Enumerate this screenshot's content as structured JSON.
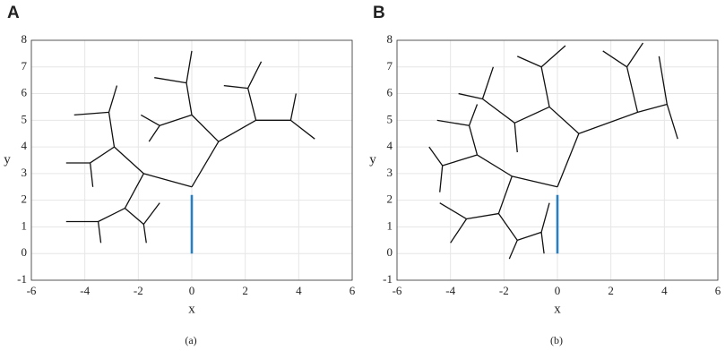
{
  "chart_data": [
    {
      "type": "line",
      "panel": "A",
      "caption": "(a)",
      "xlabel": "x",
      "ylabel": "y",
      "xlim": [
        -6,
        6
      ],
      "ylim": [
        -1,
        8
      ],
      "xticks": [
        -6,
        -4,
        -2,
        0,
        2,
        4,
        6
      ],
      "yticks": [
        -1,
        0,
        1,
        2,
        3,
        4,
        5,
        6,
        7,
        8
      ],
      "grid": true,
      "series": [
        {
          "color": "#111111",
          "x": [
            0,
            1.0,
            null,
            0,
            -1.8,
            null,
            1.0,
            0,
            null,
            1.0,
            2.4,
            null,
            2.4,
            3.7,
            null,
            2.4,
            2.1,
            null,
            3.7,
            3.9,
            null,
            3.7,
            4.6,
            null,
            2.1,
            1.2,
            null,
            2.1,
            2.6,
            null,
            0,
            -0.2,
            null,
            0,
            -1.2,
            null,
            -0.2,
            0,
            null,
            -0.2,
            -1.4,
            null,
            -1.2,
            -1.9,
            null,
            -1.2,
            -1.6,
            null,
            -1.8,
            -2.9,
            null,
            -1.8,
            -2.5,
            null,
            -2.9,
            -3.1,
            null,
            -2.9,
            -3.8,
            null,
            -3.1,
            -4.4,
            null,
            -3.1,
            -2.8,
            null,
            -3.8,
            -4.7,
            null,
            -3.8,
            -3.7,
            null,
            -2.5,
            -3.5,
            null,
            -2.5,
            -1.8,
            null,
            -1.8,
            -1.7,
            null,
            -1.8,
            -1.2,
            null,
            -3.5,
            -3.4,
            null,
            -3.5,
            -4.7
          ],
          "y": [
            2.5,
            4.2,
            null,
            2.5,
            3.0,
            null,
            4.2,
            5.2,
            null,
            4.2,
            5.0,
            null,
            5.0,
            5.0,
            null,
            5.0,
            6.2,
            null,
            5.0,
            6.0,
            null,
            5.0,
            4.3,
            null,
            6.2,
            6.3,
            null,
            6.2,
            7.2,
            null,
            5.2,
            6.4,
            null,
            5.2,
            4.8,
            null,
            6.4,
            7.6,
            null,
            6.4,
            6.6,
            null,
            4.8,
            5.2,
            null,
            4.8,
            4.2,
            null,
            3.0,
            4.0,
            null,
            3.0,
            1.7,
            null,
            4.0,
            5.3,
            null,
            4.0,
            3.4,
            null,
            5.3,
            5.2,
            null,
            5.3,
            6.3,
            null,
            3.4,
            3.4,
            null,
            3.4,
            2.5,
            null,
            1.7,
            1.2,
            null,
            1.7,
            1.1,
            null,
            1.1,
            0.4,
            null,
            1.1,
            1.9,
            null,
            1.2,
            0.4,
            null,
            1.2,
            1.2
          ]
        },
        {
          "color": "#2a7fc1",
          "x": [
            0,
            0
          ],
          "y": [
            0,
            2.2
          ]
        }
      ]
    },
    {
      "type": "line",
      "panel": "B",
      "caption": "(b)",
      "xlabel": "x",
      "ylabel": "y",
      "xlim": [
        -6,
        6
      ],
      "ylim": [
        -1,
        8
      ],
      "xticks": [
        -6,
        -4,
        -2,
        0,
        2,
        4,
        6
      ],
      "yticks": [
        -1,
        0,
        1,
        2,
        3,
        4,
        5,
        6,
        7,
        8
      ],
      "grid": true,
      "series": [
        {
          "color": "#111111",
          "x": [
            0,
            0.8,
            null,
            0,
            -1.7,
            null,
            0.8,
            3.0,
            null,
            0.8,
            -0.3,
            null,
            3.0,
            4.1,
            null,
            3.0,
            2.6,
            null,
            4.1,
            4.5,
            null,
            4.1,
            3.8,
            null,
            2.6,
            1.7,
            null,
            2.6,
            3.2,
            null,
            -0.3,
            -0.6,
            null,
            -0.3,
            -1.6,
            null,
            -0.6,
            0.3,
            null,
            -0.6,
            -1.5,
            null,
            -1.6,
            -2.8,
            null,
            -1.6,
            -1.5,
            null,
            -2.8,
            -2.4,
            null,
            -2.8,
            -3.7,
            null,
            -1.7,
            -3.0,
            null,
            -1.7,
            -2.2,
            null,
            -3.0,
            -3.3,
            null,
            -3.0,
            -4.3,
            null,
            -3.3,
            -4.5,
            null,
            -3.3,
            -3.0,
            null,
            -4.3,
            -4.8,
            null,
            -4.3,
            -4.4,
            null,
            -2.2,
            -3.4,
            null,
            -2.2,
            -1.5,
            null,
            -3.4,
            -4.0,
            null,
            -3.4,
            -4.4,
            null,
            -1.5,
            -1.8,
            null,
            -1.5,
            -0.6,
            null,
            -0.6,
            -0.3,
            null,
            -0.6,
            -0.5
          ],
          "y": [
            2.5,
            4.5,
            null,
            2.5,
            2.9,
            null,
            4.5,
            5.3,
            null,
            4.5,
            5.5,
            null,
            5.3,
            5.6,
            null,
            5.3,
            7.0,
            null,
            5.6,
            4.3,
            null,
            5.6,
            7.4,
            null,
            7.0,
            7.6,
            null,
            7.0,
            7.9,
            null,
            5.5,
            7.0,
            null,
            5.5,
            4.9,
            null,
            7.0,
            7.8,
            null,
            7.0,
            7.4,
            null,
            4.9,
            5.8,
            null,
            4.9,
            3.8,
            null,
            5.8,
            7.0,
            null,
            5.8,
            6.0,
            null,
            2.9,
            3.7,
            null,
            2.9,
            1.5,
            null,
            3.7,
            4.8,
            null,
            3.7,
            3.3,
            null,
            4.8,
            5.0,
            null,
            4.8,
            5.6,
            null,
            3.3,
            4.0,
            null,
            3.3,
            2.3,
            null,
            1.5,
            1.3,
            null,
            1.5,
            0.5,
            null,
            1.3,
            0.4,
            null,
            1.3,
            1.9,
            null,
            0.5,
            -0.2,
            null,
            0.5,
            0.8,
            null,
            0.8,
            1.9,
            null,
            0.8,
            0.0
          ]
        },
        {
          "color": "#2a7fc1",
          "x": [
            0,
            0
          ],
          "y": [
            0,
            2.2
          ]
        }
      ]
    }
  ]
}
